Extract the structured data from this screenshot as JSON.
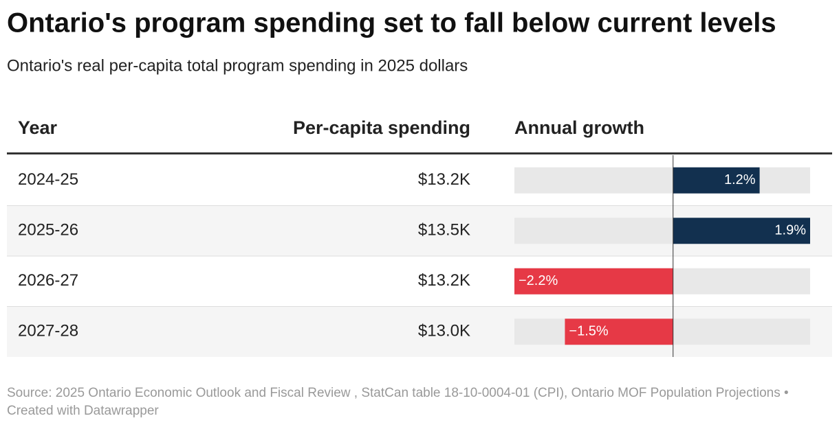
{
  "header": {
    "title": "Ontario's program spending set to fall below current levels",
    "subtitle": "Ontario's real per-capita total program spending in 2025 dollars"
  },
  "table": {
    "columns": [
      "Year",
      "Per-capita spending",
      "Annual growth"
    ],
    "rows": [
      {
        "year": "2024-25",
        "spending": "$13.2K",
        "growth": 1.2,
        "growth_label": "1.2%"
      },
      {
        "year": "2025-26",
        "spending": "$13.5K",
        "growth": 1.9,
        "growth_label": "1.9%"
      },
      {
        "year": "2026-27",
        "spending": "$13.2K",
        "growth": -2.2,
        "growth_label": "−2.2%"
      },
      {
        "year": "2027-28",
        "spending": "$13.0K",
        "growth": -1.5,
        "growth_label": "−1.5%"
      }
    ]
  },
  "colors": {
    "positive": "#12304f",
    "negative": "#e63946"
  },
  "footer": {
    "text": "Source: 2025 Ontario Economic Outlook and Fiscal Review , StatCan table 18-10-0004-01 (CPI), Ontario MOF Population Projections • Created with Datawrapper"
  }
}
